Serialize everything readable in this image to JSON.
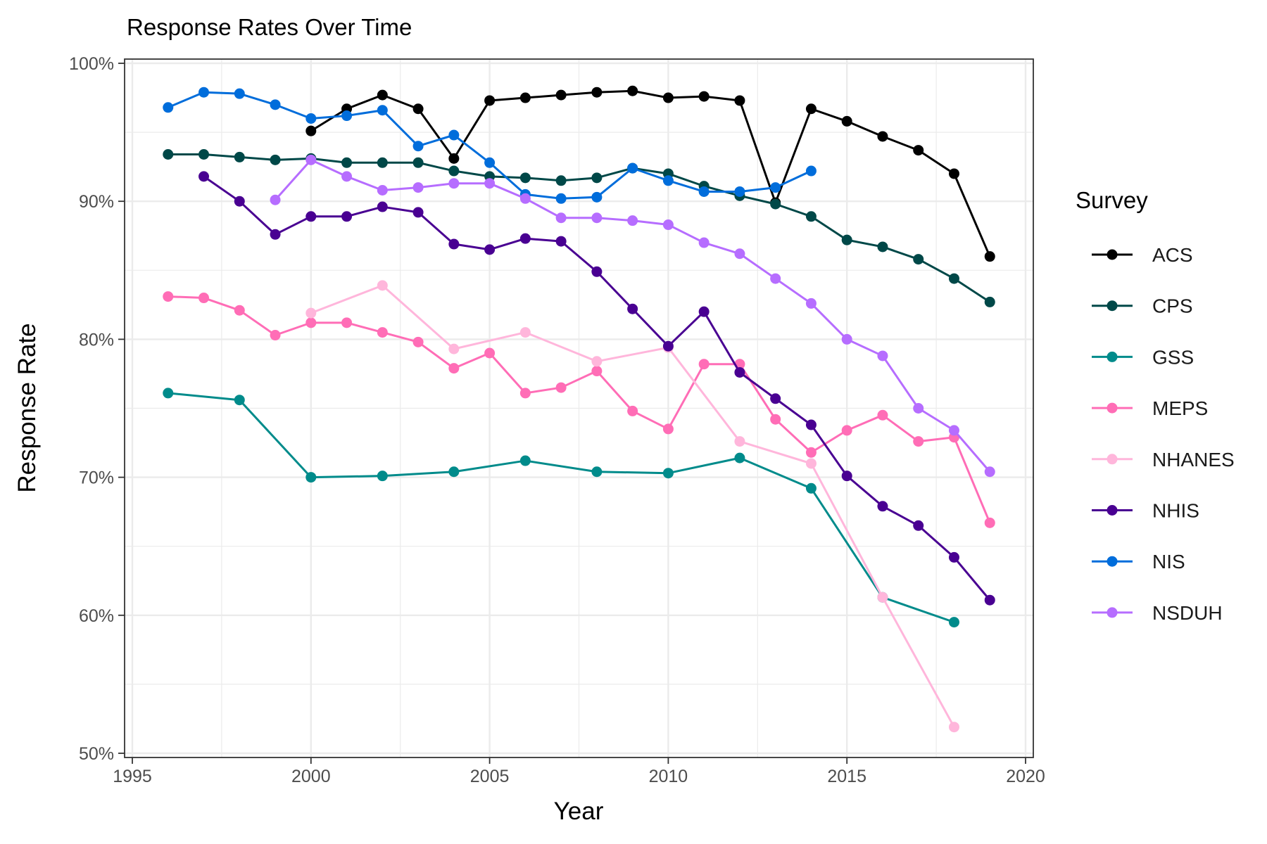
{
  "chart_data": {
    "type": "line",
    "title": "Response Rates Over Time",
    "xlabel": "Year",
    "ylabel": "Response Rate",
    "xlim": [
      1995,
      2020
    ],
    "ylim": [
      50,
      100
    ],
    "x_ticks": [
      "1995",
      "2000",
      "2005",
      "2010",
      "2015",
      "2020"
    ],
    "y_ticks": [
      "50%",
      "60%",
      "70%",
      "80%",
      "90%",
      "100%"
    ],
    "grid": true,
    "legend": {
      "title": "Survey",
      "position": "right"
    },
    "series": [
      {
        "name": "ACS",
        "color": "#000000",
        "x": [
          2000,
          2001,
          2002,
          2003,
          2004,
          2005,
          2006,
          2007,
          2008,
          2009,
          2010,
          2011,
          2012,
          2013,
          2014,
          2015,
          2016,
          2017,
          2018,
          2019
        ],
        "y": [
          95.1,
          96.7,
          97.7,
          96.7,
          93.1,
          97.3,
          97.5,
          97.7,
          97.9,
          98.0,
          97.5,
          97.6,
          97.3,
          89.9,
          96.7,
          95.8,
          94.7,
          93.7,
          92.0,
          86.0
        ]
      },
      {
        "name": "CPS",
        "color": "#004848",
        "x": [
          1996,
          1997,
          1998,
          1999,
          2000,
          2001,
          2002,
          2003,
          2004,
          2005,
          2006,
          2007,
          2008,
          2009,
          2010,
          2011,
          2012,
          2013,
          2014,
          2015,
          2016,
          2017,
          2018,
          2019
        ],
        "y": [
          93.4,
          93.4,
          93.2,
          93.0,
          93.1,
          92.8,
          92.8,
          92.8,
          92.2,
          91.8,
          91.7,
          91.5,
          91.7,
          92.4,
          92.0,
          91.1,
          90.4,
          89.8,
          88.9,
          87.2,
          86.7,
          85.8,
          84.4,
          82.7
        ]
      },
      {
        "name": "GSS",
        "color": "#008b8b",
        "x": [
          1996,
          1998,
          2000,
          2002,
          2004,
          2006,
          2008,
          2010,
          2012,
          2014,
          2016,
          2018
        ],
        "y": [
          76.1,
          75.6,
          70.0,
          70.1,
          70.4,
          71.2,
          70.4,
          70.3,
          71.4,
          69.2,
          61.3,
          59.5
        ]
      },
      {
        "name": "MEPS",
        "color": "#ff6db6",
        "x": [
          1996,
          1997,
          1998,
          1999,
          2000,
          2001,
          2002,
          2003,
          2004,
          2005,
          2006,
          2007,
          2008,
          2009,
          2010,
          2011,
          2012,
          2013,
          2014,
          2015,
          2016,
          2017,
          2018,
          2019
        ],
        "y": [
          83.1,
          83.0,
          82.1,
          80.3,
          81.2,
          81.2,
          80.5,
          79.8,
          77.9,
          79.0,
          76.1,
          76.5,
          77.7,
          74.8,
          73.5,
          78.2,
          78.2,
          74.2,
          71.8,
          73.4,
          74.5,
          72.6,
          72.9,
          66.7
        ]
      },
      {
        "name": "NHANES",
        "color": "#ffb6db",
        "x": [
          2000,
          2002,
          2004,
          2006,
          2008,
          2010,
          2012,
          2014,
          2016,
          2018
        ],
        "y": [
          81.9,
          83.9,
          79.3,
          80.5,
          78.4,
          79.4,
          72.6,
          71.0,
          61.3,
          51.9
        ]
      },
      {
        "name": "NHIS",
        "color": "#490092",
        "x": [
          1997,
          1998,
          1999,
          2000,
          2001,
          2002,
          2003,
          2004,
          2005,
          2006,
          2007,
          2008,
          2009,
          2010,
          2011,
          2012,
          2013,
          2014,
          2015,
          2016,
          2017,
          2018,
          2019
        ],
        "y": [
          91.8,
          90.0,
          87.6,
          88.9,
          88.9,
          89.6,
          89.2,
          86.9,
          86.5,
          87.3,
          87.1,
          84.9,
          82.2,
          79.5,
          82.0,
          77.6,
          75.7,
          73.8,
          70.1,
          67.9,
          66.5,
          64.2,
          61.1
        ]
      },
      {
        "name": "NIS",
        "color": "#006ddb",
        "x": [
          1996,
          1997,
          1998,
          1999,
          2000,
          2001,
          2002,
          2003,
          2004,
          2005,
          2006,
          2007,
          2008,
          2009,
          2010,
          2011,
          2012,
          2013,
          2014
        ],
        "y": [
          96.8,
          97.9,
          97.8,
          97.0,
          96.0,
          96.2,
          96.6,
          94.0,
          94.8,
          92.8,
          90.5,
          90.2,
          90.3,
          92.4,
          91.5,
          90.7,
          90.7,
          91.0,
          92.2
        ]
      },
      {
        "name": "NSDUH",
        "color": "#b66dff",
        "x": [
          1999,
          2000,
          2001,
          2002,
          2003,
          2004,
          2005,
          2006,
          2007,
          2008,
          2009,
          2010,
          2011,
          2012,
          2013,
          2014,
          2015,
          2016,
          2017,
          2018,
          2019
        ],
        "y": [
          90.1,
          93.0,
          91.8,
          90.8,
          91.0,
          91.3,
          91.3,
          90.2,
          88.8,
          88.8,
          88.6,
          88.3,
          87.0,
          86.2,
          84.4,
          82.6,
          80.0,
          78.8,
          75.0,
          73.4,
          70.4
        ]
      }
    ]
  }
}
